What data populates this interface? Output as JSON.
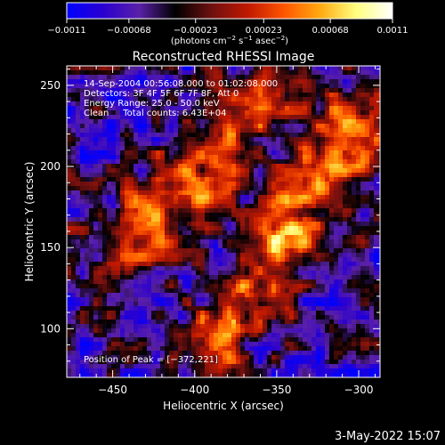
{
  "chart_data": {
    "type": "heatmap",
    "title": "Reconstructed RHESSI Image",
    "xlabel": "Heliocentric X (arcsec)",
    "ylabel": "Heliocentric Y (arcsec)",
    "xlim": [
      -478,
      -287
    ],
    "ylim": [
      70,
      262
    ],
    "xticks": [
      -450,
      -400,
      -350,
      -300
    ],
    "xtick_labels": [
      "−450",
      "−400",
      "−350",
      "−300"
    ],
    "yticks": [
      100,
      150,
      200,
      250
    ],
    "ytick_labels": [
      "100",
      "150",
      "200",
      "250"
    ],
    "colorbar": {
      "range": [
        -0.0011,
        0.0011
      ],
      "ticks": [
        -0.0011,
        -0.00068,
        -0.00023,
        0.00023,
        0.00068,
        0.0011
      ],
      "tick_labels": [
        "−0.0011",
        "−0.00068",
        "−0.00023",
        "0.00023",
        "0.00068",
        "0.0011"
      ],
      "unit_label": "(photons cm",
      "unit_exp1": "−2",
      "unit_mid": " s",
      "unit_exp2": "−1",
      "unit_end": " asec",
      "unit_exp3": "−2",
      "unit_close": ")",
      "colormap": [
        "#0000ff",
        "#2a00d0",
        "#5a20a8",
        "#000000",
        "#6e1010",
        "#c01800",
        "#ff5500",
        "#ffaa10",
        "#ffff80",
        "#ffffff"
      ]
    },
    "annotations": [
      "14-Sep-2004 00:56:08.000 to 01:02:08.000",
      "Detectors: 3F 4F 5F 6F 7F 8F, Att 0",
      "Energy Range: 25.0 - 50.0 keV",
      "Clean     Total counts: 6.43E+04"
    ],
    "peak_text": "Position of Peak = [−372,221]",
    "peak": [
      -372,
      221
    ],
    "sources": [
      {
        "x": -395,
        "y": 200,
        "axis_angle_deg": 48,
        "length": 190,
        "width": 17,
        "amplitude": 0.00095
      },
      {
        "x": -340,
        "y": 165,
        "axis_angle_deg": 58,
        "length": 210,
        "width": 15,
        "amplitude": 0.0011
      }
    ]
  },
  "timestamp": "3-May-2022 15:07"
}
